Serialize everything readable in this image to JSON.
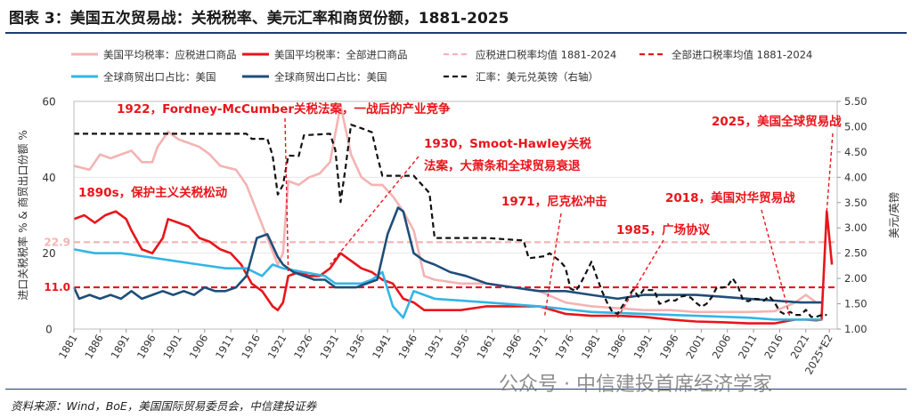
{
  "title": "图表 3：美国五次贸易战：关税税率、美元汇率和商贸份额，1881-2025",
  "source": "资料来源：Wind，BoE，美国国际贸易委员会，中信建投证券",
  "watermark": "公众号 · 中信建投首席经济学家",
  "colors": {
    "title_rule": "#1f3b73",
    "tariff_dutiable": "#f4b3b3",
    "tariff_all": "#e8151b",
    "avg_dutiable": "#f4b3b3",
    "avg_all": "#e8151b",
    "export_share_world": "#33b5e5",
    "trade_share_world": "#1f4e79",
    "fx": "#111111",
    "annotation": "#e8151b"
  },
  "chart_data": {
    "type": "line",
    "legend": {
      "position": "top",
      "entries": [
        {
          "label": "美国平均税率：应税进口商品",
          "color": "#f4b3b3",
          "style": "solid"
        },
        {
          "label": "美国平均税率：全部进口商品",
          "color": "#e8151b",
          "style": "solid"
        },
        {
          "label": "应税进口税率均值 1881-2024",
          "color": "#f4b3b3",
          "style": "dashed"
        },
        {
          "label": "全部进口税率均值 1881-2024",
          "color": "#e8151b",
          "style": "dashed"
        },
        {
          "label": "全球商贸出口占比：美国",
          "color": "#33b5e5",
          "style": "solid"
        },
        {
          "label": "全球商贸出口占比：美国",
          "color": "#1f4e79",
          "style": "solid"
        },
        {
          "label": "汇率：美元兑英镑（右轴）",
          "color": "#111111",
          "style": "dashed"
        }
      ]
    },
    "ylabel": "进口关税税率 % & 商贸出口份额 %",
    "y2label": "美元/英镑",
    "ylim": [
      0,
      60
    ],
    "y2lim": [
      1.0,
      5.5
    ],
    "y_ticks": [
      "0",
      "20",
      "40",
      "60"
    ],
    "y2_ticks": [
      "1.00",
      "1.50",
      "2.00",
      "2.50",
      "3.00",
      "3.50",
      "4.00",
      "4.50",
      "5.00",
      "5.50"
    ],
    "xlim": [
      1881,
      2027
    ],
    "x_ticks": [
      "1881",
      "1886",
      "1891",
      "1896",
      "1901",
      "1906",
      "1911",
      "1916",
      "1921",
      "1926",
      "1931",
      "1936",
      "1941",
      "1946",
      "1951",
      "1956",
      "1961",
      "1966",
      "1971",
      "1976",
      "1981",
      "1986",
      "1991",
      "1996",
      "2001",
      "2006",
      "2011",
      "2016",
      "2021",
      "2025*E2"
    ],
    "reference_lines": [
      {
        "series": "应税进口税率均值 1881-2024",
        "value": 22.9,
        "label": "22.9",
        "color": "#f4b3b3"
      },
      {
        "series": "全部进口税率均值 1881-2024",
        "value": 11.0,
        "label": "11.0",
        "color": "#e8151b"
      }
    ],
    "series": [
      {
        "name": "美国平均税率：应税进口商品",
        "axis": "left",
        "color": "#f4b3b3",
        "points": [
          [
            1881,
            43
          ],
          [
            1884,
            42
          ],
          [
            1886,
            46
          ],
          [
            1888,
            45
          ],
          [
            1890,
            46
          ],
          [
            1892,
            47
          ],
          [
            1894,
            44
          ],
          [
            1896,
            44
          ],
          [
            1897,
            48
          ],
          [
            1899,
            52
          ],
          [
            1901,
            50
          ],
          [
            1903,
            49
          ],
          [
            1905,
            48
          ],
          [
            1907,
            46
          ],
          [
            1909,
            43
          ],
          [
            1912,
            42
          ],
          [
            1914,
            38
          ],
          [
            1916,
            31
          ],
          [
            1918,
            24
          ],
          [
            1920,
            17
          ],
          [
            1921,
            20
          ],
          [
            1922,
            39
          ],
          [
            1924,
            38
          ],
          [
            1926,
            40
          ],
          [
            1928,
            41
          ],
          [
            1930,
            44
          ],
          [
            1932,
            59
          ],
          [
            1934,
            46
          ],
          [
            1936,
            40
          ],
          [
            1938,
            38
          ],
          [
            1940,
            38
          ],
          [
            1942,
            35
          ],
          [
            1944,
            31
          ],
          [
            1946,
            26
          ],
          [
            1948,
            14
          ],
          [
            1950,
            13
          ],
          [
            1955,
            12
          ],
          [
            1960,
            12
          ],
          [
            1965,
            11
          ],
          [
            1970,
            10
          ],
          [
            1975,
            7
          ],
          [
            1980,
            6
          ],
          [
            1985,
            5.5
          ],
          [
            1990,
            5
          ],
          [
            1995,
            5
          ],
          [
            2000,
            4.5
          ],
          [
            2005,
            4.5
          ],
          [
            2010,
            4.5
          ],
          [
            2015,
            4.7
          ],
          [
            2019,
            7
          ],
          [
            2021,
            9
          ],
          [
            2023,
            7
          ],
          [
            2024,
            7
          ]
        ]
      },
      {
        "name": "美国平均税率：全部进口商品",
        "axis": "left",
        "color": "#e8151b",
        "points": [
          [
            1881,
            29
          ],
          [
            1883,
            30
          ],
          [
            1885,
            28
          ],
          [
            1887,
            30
          ],
          [
            1889,
            31
          ],
          [
            1891,
            29
          ],
          [
            1892,
            26
          ],
          [
            1894,
            21
          ],
          [
            1896,
            20
          ],
          [
            1898,
            24
          ],
          [
            1899,
            29
          ],
          [
            1901,
            28
          ],
          [
            1903,
            27
          ],
          [
            1905,
            24
          ],
          [
            1907,
            23
          ],
          [
            1909,
            21
          ],
          [
            1911,
            20
          ],
          [
            1913,
            17
          ],
          [
            1915,
            12
          ],
          [
            1917,
            10
          ],
          [
            1919,
            6
          ],
          [
            1920,
            5
          ],
          [
            1921,
            7
          ],
          [
            1922,
            14
          ],
          [
            1924,
            15
          ],
          [
            1926,
            14
          ],
          [
            1928,
            14
          ],
          [
            1930,
            16
          ],
          [
            1932,
            20
          ],
          [
            1934,
            18
          ],
          [
            1936,
            16
          ],
          [
            1938,
            15
          ],
          [
            1940,
            13
          ],
          [
            1942,
            12
          ],
          [
            1944,
            8
          ],
          [
            1946,
            7
          ],
          [
            1948,
            5
          ],
          [
            1950,
            5
          ],
          [
            1955,
            5
          ],
          [
            1960,
            6
          ],
          [
            1965,
            6
          ],
          [
            1970,
            6
          ],
          [
            1975,
            4
          ],
          [
            1980,
            3.5
          ],
          [
            1985,
            3.5
          ],
          [
            1990,
            3.2
          ],
          [
            1995,
            2.5
          ],
          [
            2000,
            2
          ],
          [
            2005,
            1.8
          ],
          [
            2010,
            1.5
          ],
          [
            2015,
            1.5
          ],
          [
            2019,
            2.5
          ],
          [
            2021,
            2.5
          ],
          [
            2023,
            2.3
          ],
          [
            2024,
            2.5
          ],
          [
            2025,
            31
          ],
          [
            2026,
            17
          ]
        ]
      },
      {
        "name": "全球商贸出口占比：美国",
        "axis": "left",
        "color": "#33b5e5",
        "points": [
          [
            1881,
            21
          ],
          [
            1885,
            20
          ],
          [
            1890,
            20
          ],
          [
            1895,
            19
          ],
          [
            1900,
            18
          ],
          [
            1905,
            17
          ],
          [
            1910,
            16
          ],
          [
            1914,
            16
          ],
          [
            1917,
            14
          ],
          [
            1919,
            17
          ],
          [
            1921,
            16
          ],
          [
            1925,
            15
          ],
          [
            1929,
            14
          ],
          [
            1931,
            12
          ],
          [
            1933,
            12
          ],
          [
            1936,
            12
          ],
          [
            1938,
            13
          ],
          [
            1940,
            15
          ],
          [
            1942,
            6
          ],
          [
            1944,
            3
          ],
          [
            1946,
            10
          ],
          [
            1948,
            9
          ],
          [
            1950,
            8
          ],
          [
            1960,
            7
          ],
          [
            1970,
            6
          ],
          [
            1980,
            4.5
          ],
          [
            1990,
            4
          ],
          [
            2000,
            3.5
          ],
          [
            2010,
            3
          ],
          [
            2015,
            2.5
          ],
          [
            2020,
            2.5
          ],
          [
            2024,
            2.5
          ]
        ]
      },
      {
        "name": "全球商贸出口占比：美国",
        "axis": "left",
        "color": "#1f4e79",
        "points": [
          [
            1881,
            11
          ],
          [
            1882,
            8
          ],
          [
            1884,
            9
          ],
          [
            1886,
            8
          ],
          [
            1888,
            9
          ],
          [
            1890,
            8
          ],
          [
            1892,
            10
          ],
          [
            1894,
            8
          ],
          [
            1896,
            9
          ],
          [
            1898,
            10
          ],
          [
            1900,
            9
          ],
          [
            1902,
            10
          ],
          [
            1904,
            9
          ],
          [
            1906,
            11
          ],
          [
            1908,
            10
          ],
          [
            1910,
            10
          ],
          [
            1912,
            11
          ],
          [
            1914,
            14
          ],
          [
            1916,
            24
          ],
          [
            1918,
            25
          ],
          [
            1920,
            19
          ],
          [
            1921,
            17
          ],
          [
            1923,
            15
          ],
          [
            1925,
            14
          ],
          [
            1927,
            13
          ],
          [
            1929,
            13
          ],
          [
            1931,
            11
          ],
          [
            1933,
            11
          ],
          [
            1935,
            11
          ],
          [
            1937,
            12
          ],
          [
            1939,
            13
          ],
          [
            1941,
            25
          ],
          [
            1943,
            32
          ],
          [
            1944,
            31
          ],
          [
            1946,
            20
          ],
          [
            1948,
            18
          ],
          [
            1950,
            17
          ],
          [
            1953,
            15
          ],
          [
            1956,
            14
          ],
          [
            1960,
            12
          ],
          [
            1965,
            11
          ],
          [
            1970,
            10
          ],
          [
            1975,
            10
          ],
          [
            1980,
            9
          ],
          [
            1985,
            8
          ],
          [
            1990,
            9
          ],
          [
            1995,
            9
          ],
          [
            2000,
            9
          ],
          [
            2005,
            8.5
          ],
          [
            2010,
            8
          ],
          [
            2015,
            7.5
          ],
          [
            2020,
            7
          ],
          [
            2024,
            7
          ]
        ]
      },
      {
        "name": "汇率：美元兑英镑（右轴）",
        "axis": "right",
        "color": "#111111",
        "points": [
          [
            1881,
            4.86
          ],
          [
            1890,
            4.86
          ],
          [
            1900,
            4.86
          ],
          [
            1910,
            4.86
          ],
          [
            1914,
            4.86
          ],
          [
            1915,
            4.76
          ],
          [
            1918,
            4.76
          ],
          [
            1919,
            4.43
          ],
          [
            1920,
            3.66
          ],
          [
            1921,
            3.85
          ],
          [
            1922,
            4.43
          ],
          [
            1924,
            4.42
          ],
          [
            1925,
            4.83
          ],
          [
            1930,
            4.86
          ],
          [
            1931,
            4.54
          ],
          [
            1932,
            3.51
          ],
          [
            1933,
            4.22
          ],
          [
            1934,
            5.04
          ],
          [
            1936,
            4.97
          ],
          [
            1938,
            4.89
          ],
          [
            1939,
            4.43
          ],
          [
            1940,
            4.03
          ],
          [
            1946,
            4.03
          ],
          [
            1949,
            3.69
          ],
          [
            1950,
            2.8
          ],
          [
            1960,
            2.8
          ],
          [
            1967,
            2.75
          ],
          [
            1968,
            2.4
          ],
          [
            1971,
            2.44
          ],
          [
            1972,
            2.5
          ],
          [
            1974,
            2.34
          ],
          [
            1975,
            2.22
          ],
          [
            1976,
            1.8
          ],
          [
            1977,
            1.75
          ],
          [
            1978,
            1.92
          ],
          [
            1979,
            2.12
          ],
          [
            1980,
            2.33
          ],
          [
            1981,
            2.03
          ],
          [
            1982,
            1.75
          ],
          [
            1983,
            1.52
          ],
          [
            1984,
            1.34
          ],
          [
            1985,
            1.3
          ],
          [
            1986,
            1.47
          ],
          [
            1987,
            1.64
          ],
          [
            1988,
            1.78
          ],
          [
            1989,
            1.64
          ],
          [
            1990,
            1.78
          ],
          [
            1991,
            1.77
          ],
          [
            1992,
            1.77
          ],
          [
            1993,
            1.5
          ],
          [
            1994,
            1.53
          ],
          [
            1995,
            1.58
          ],
          [
            1996,
            1.56
          ],
          [
            1997,
            1.64
          ],
          [
            1998,
            1.66
          ],
          [
            1999,
            1.62
          ],
          [
            2000,
            1.52
          ],
          [
            2001,
            1.44
          ],
          [
            2002,
            1.5
          ],
          [
            2003,
            1.63
          ],
          [
            2004,
            1.83
          ],
          [
            2005,
            1.82
          ],
          [
            2006,
            1.84
          ],
          [
            2007,
            2.0
          ],
          [
            2008,
            1.85
          ],
          [
            2009,
            1.57
          ],
          [
            2010,
            1.55
          ],
          [
            2011,
            1.6
          ],
          [
            2012,
            1.59
          ],
          [
            2013,
            1.56
          ],
          [
            2014,
            1.65
          ],
          [
            2015,
            1.53
          ],
          [
            2016,
            1.35
          ],
          [
            2017,
            1.29
          ],
          [
            2018,
            1.34
          ],
          [
            2019,
            1.28
          ],
          [
            2020,
            1.28
          ],
          [
            2021,
            1.38
          ],
          [
            2022,
            1.24
          ],
          [
            2023,
            1.24
          ],
          [
            2024,
            1.28
          ],
          [
            2025,
            1.28
          ]
        ]
      }
    ],
    "annotations": [
      {
        "text": "1922，Fordney-McCumber关税法案，一战后的产业竞争"
      },
      {
        "text": "1930，Smoot-Hawley关税"
      },
      {
        "text": "法案，大萧条和全球贸易衰退"
      },
      {
        "text": "1890s，保护主义关税松动"
      },
      {
        "text": "1971，尼克松冲击"
      },
      {
        "text": "2018，美国对华贸易战"
      },
      {
        "text": "1985，广场协议"
      },
      {
        "text": "2025，美国全球贸易战"
      }
    ]
  }
}
